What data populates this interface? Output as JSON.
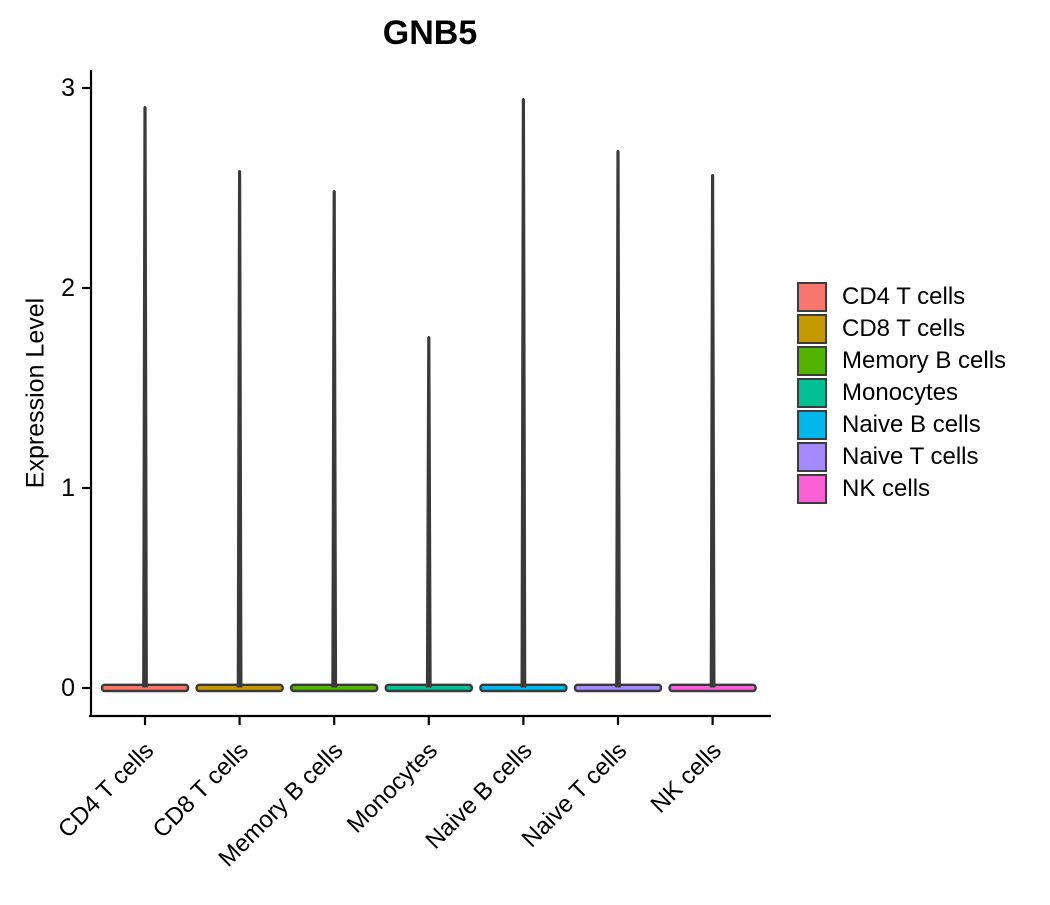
{
  "chart_data": {
    "type": "violin",
    "title": "GNB5",
    "ylabel": "Expression Level",
    "xlabel": "",
    "categories": [
      "CD4 T cells",
      "CD8 T cells",
      "Memory B cells",
      "Monocytes",
      "Naive B cells",
      "Naive T cells",
      "NK cells"
    ],
    "series": [
      {
        "name": "max_expression_level",
        "values": [
          2.91,
          2.59,
          2.49,
          1.76,
          2.95,
          2.69,
          2.57
        ]
      },
      {
        "name": "density_peak_value",
        "values": [
          0,
          0,
          0,
          0,
          0,
          0,
          0
        ]
      }
    ],
    "yticks": [
      0,
      1,
      2,
      3
    ],
    "ylim": [
      0,
      3.05
    ],
    "grid": false,
    "legend_position": "right",
    "legend": [
      {
        "label": "CD4 T cells",
        "color": "#F8766D"
      },
      {
        "label": "CD8 T cells",
        "color": "#C49A00"
      },
      {
        "label": "Memory B cells",
        "color": "#53B400"
      },
      {
        "label": "Monocytes",
        "color": "#00C094"
      },
      {
        "label": "Naive B cells",
        "color": "#00B6EB"
      },
      {
        "label": "Naive T cells",
        "color": "#A58AFF"
      },
      {
        "label": "NK cells",
        "color": "#FB61D7"
      }
    ],
    "violin_outline_color": "#3A3A3A",
    "axis_color": "#000000",
    "text_color": "#000000"
  }
}
